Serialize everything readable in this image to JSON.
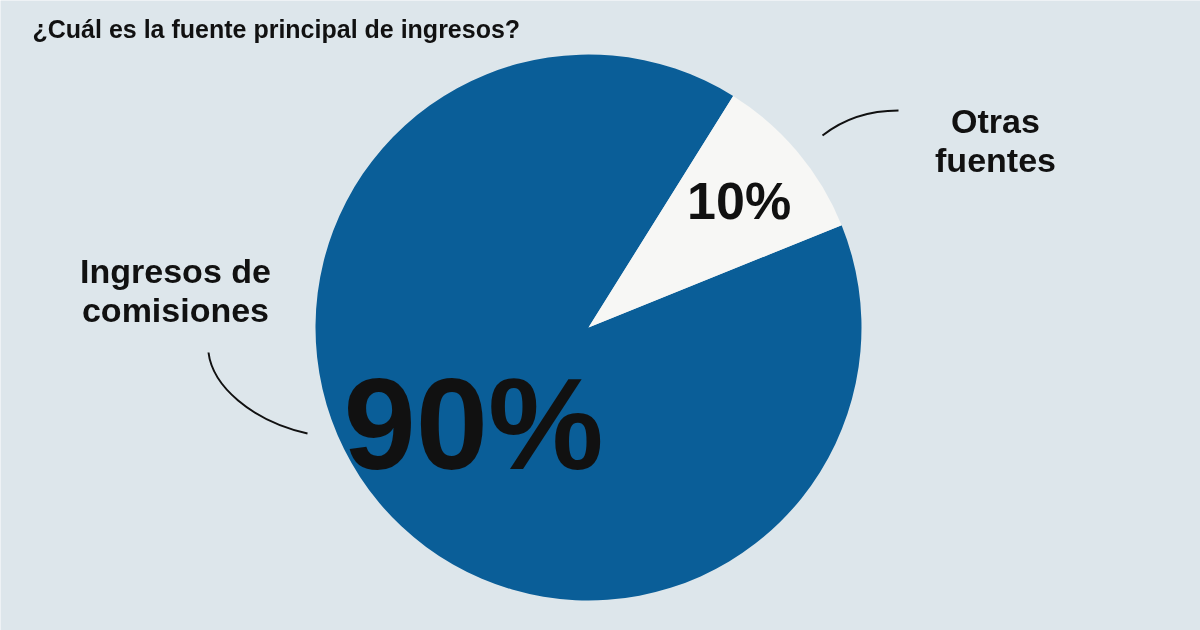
{
  "chart_data": {
    "type": "pie",
    "title": "¿Cuál es la fuente principal de ingresos?",
    "categories": [
      "Ingresos de comisiones",
      "Otras fuentes"
    ],
    "values": [
      90,
      10
    ],
    "colors": [
      "#0a5e98",
      "#f7f7f5"
    ],
    "value_labels": [
      "90%",
      "10%"
    ]
  }
}
